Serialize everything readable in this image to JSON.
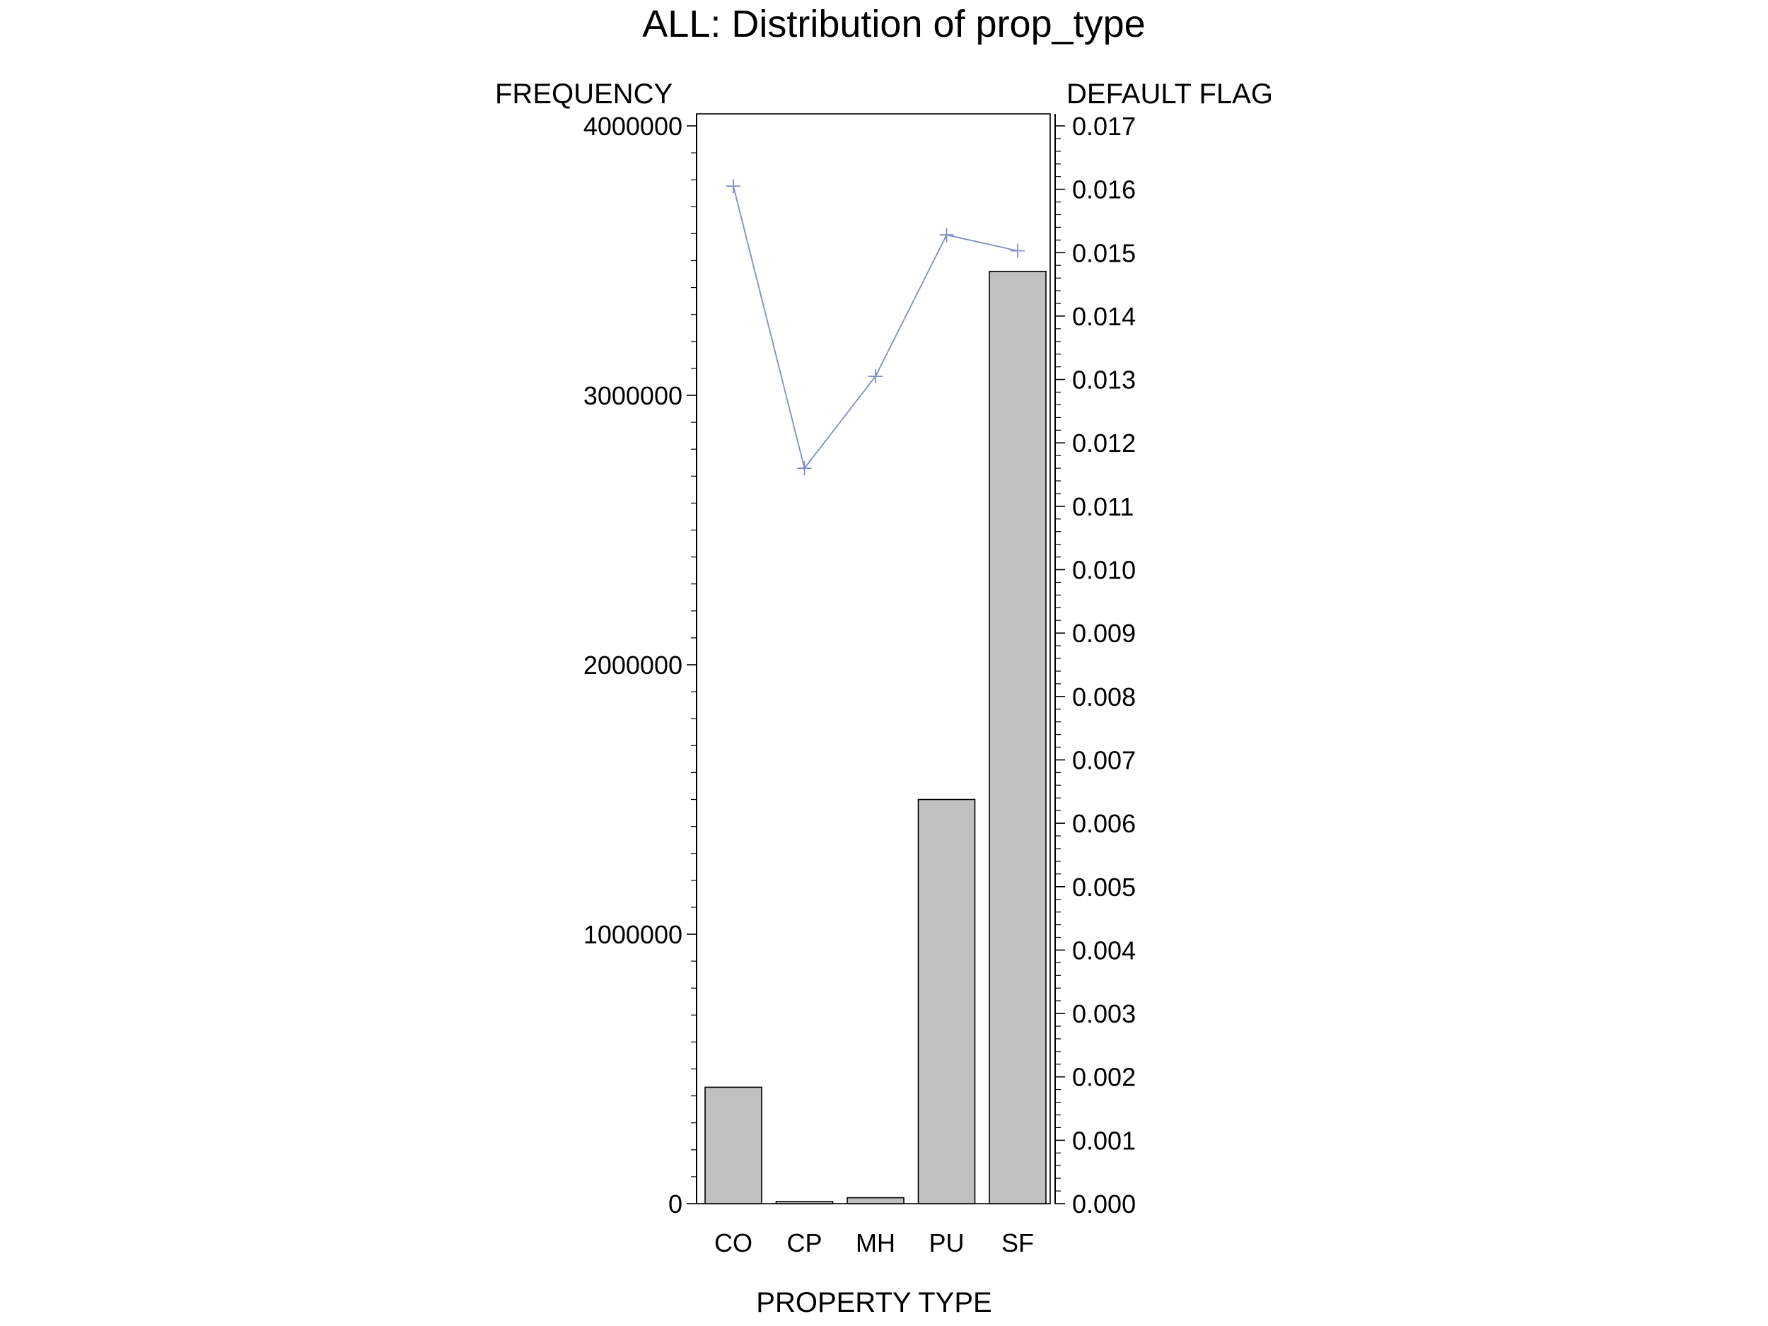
{
  "chart_data": {
    "type": "bar",
    "title": "ALL: Distribution of prop_type",
    "xlabel": "PROPERTY TYPE",
    "ylabel": "FREQUENCY",
    "y2label": "DEFAULT FLAG",
    "categories": [
      "CO",
      "CP",
      "MH",
      "PU",
      "SF"
    ],
    "ylim": [
      0,
      4000000
    ],
    "y_ticks": [
      "0",
      "1000000",
      "2000000",
      "3000000",
      "4000000"
    ],
    "y2lim": [
      0,
      0.017
    ],
    "y2_ticks": [
      "0.000",
      "0.001",
      "0.002",
      "0.003",
      "0.004",
      "0.005",
      "0.006",
      "0.007",
      "0.008",
      "0.009",
      "0.010",
      "0.011",
      "0.012",
      "0.013",
      "0.014",
      "0.015",
      "0.016",
      "0.017"
    ],
    "grid": false,
    "series": [
      {
        "type": "bar",
        "axis": "left",
        "values": [
          432000,
          8000,
          22000,
          1500000,
          3460000
        ],
        "color": "#c0c0c0"
      },
      {
        "type": "line",
        "axis": "right",
        "marker": "plus",
        "values": [
          0.01605,
          0.0116,
          0.01305,
          0.01528,
          0.01503
        ],
        "color": "#7f8fbf"
      }
    ]
  }
}
